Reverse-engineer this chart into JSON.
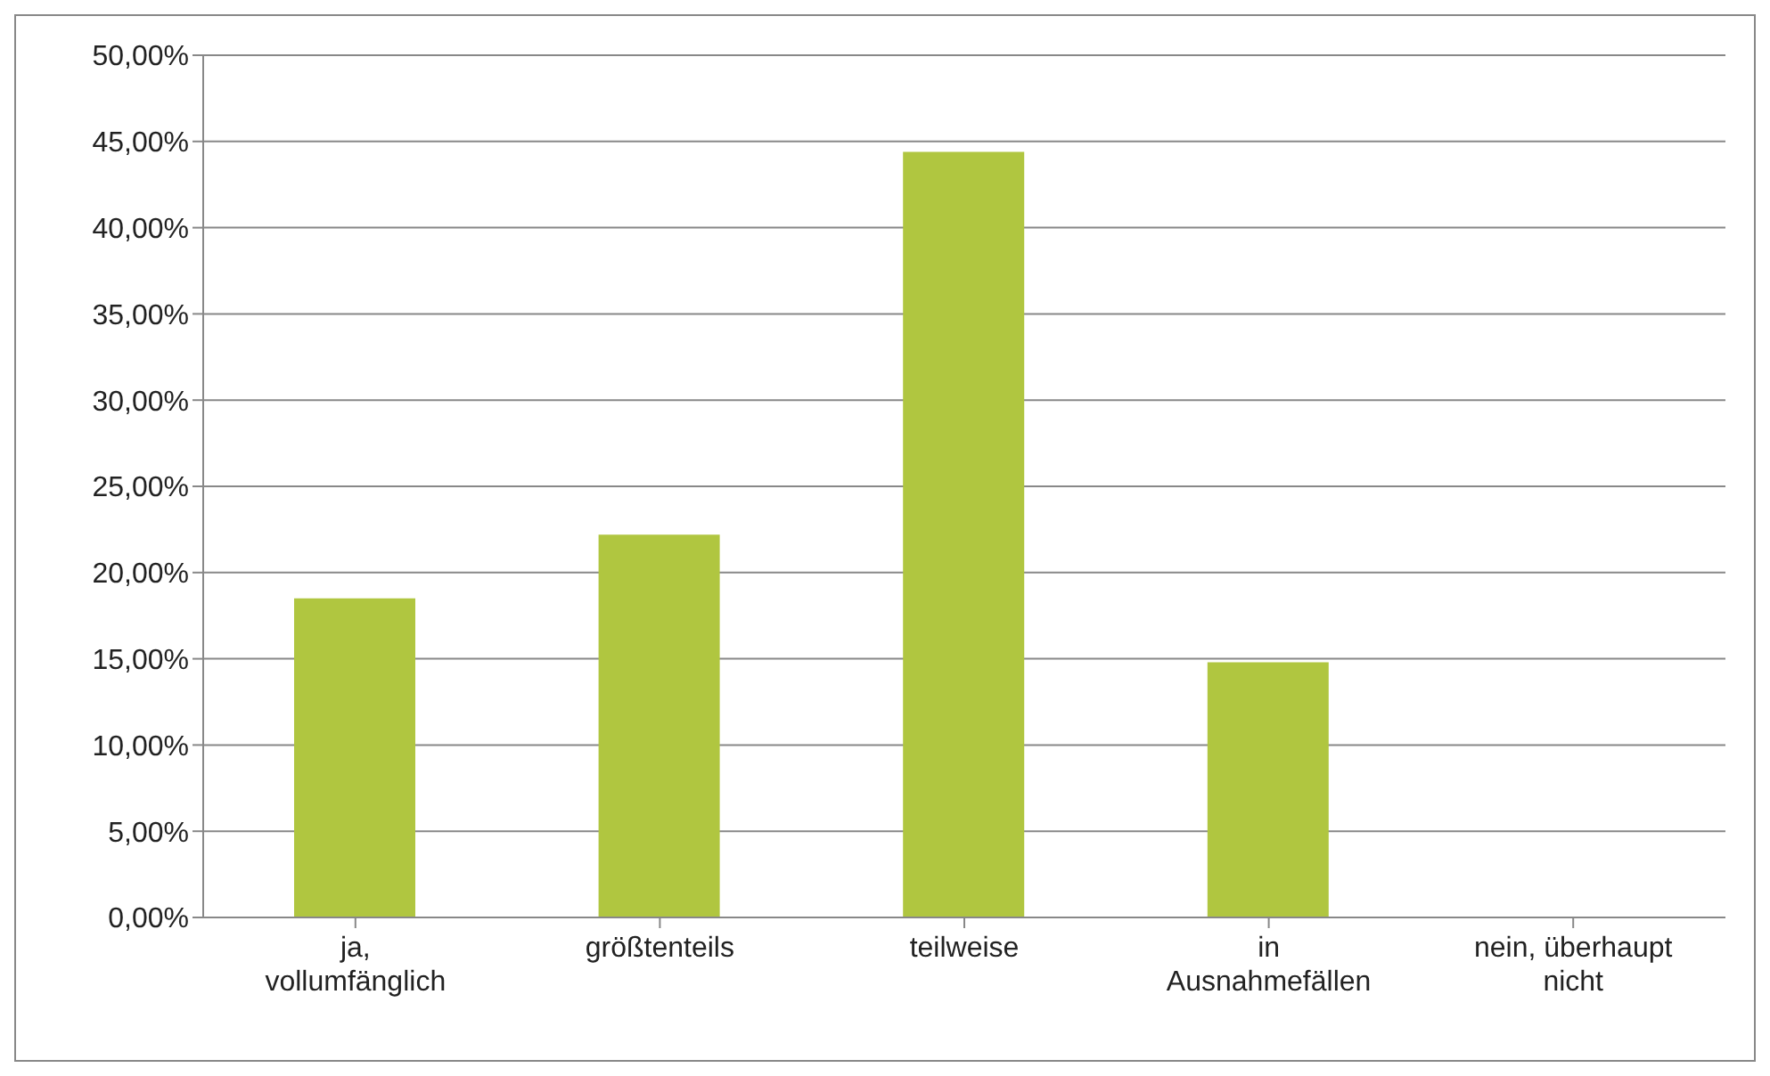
{
  "chart_data": {
    "type": "bar",
    "categories": [
      "ja, vollumfänglich",
      "größtenteils",
      "teilweise",
      "in Ausnahmefällen",
      "nein, überhaupt nicht"
    ],
    "values": [
      18.5,
      22.2,
      44.4,
      14.8,
      0
    ],
    "color": "#b0c640",
    "ylim": [
      0,
      50
    ],
    "yticks": [
      {
        "value": 0,
        "label": "0,00%"
      },
      {
        "value": 5,
        "label": "5,00%"
      },
      {
        "value": 10,
        "label": "10,00%"
      },
      {
        "value": 15,
        "label": "15,00%"
      },
      {
        "value": 20,
        "label": "20,00%"
      },
      {
        "value": 25,
        "label": "25,00%"
      },
      {
        "value": 30,
        "label": "30,00%"
      },
      {
        "value": 35,
        "label": "35,00%"
      },
      {
        "value": 40,
        "label": "40,00%"
      },
      {
        "value": 45,
        "label": "45,00%"
      },
      {
        "value": 50,
        "label": "50,00%"
      }
    ],
    "grid": "y",
    "legend": false
  }
}
